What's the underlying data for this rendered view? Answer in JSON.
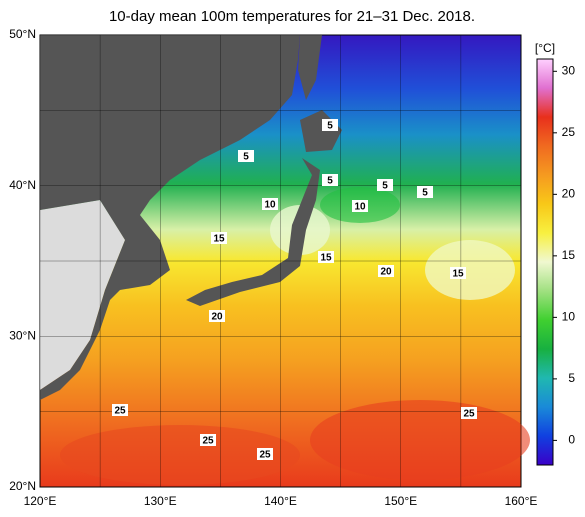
{
  "title": "10-day mean 100m temperatures for 21–31 Dec. 2018.",
  "map": {
    "xlim": [
      120,
      160
    ],
    "ylim": [
      20,
      50
    ],
    "xticks": [
      {
        "value": 120,
        "label": "120°E"
      },
      {
        "value": 130,
        "label": "130°E"
      },
      {
        "value": 140,
        "label": "140°E"
      },
      {
        "value": 150,
        "label": "150°E"
      },
      {
        "value": 160,
        "label": "160°E"
      }
    ],
    "yticks": [
      {
        "value": 20,
        "label": "20°N"
      },
      {
        "value": 30,
        "label": "30°N"
      },
      {
        "value": 40,
        "label": "40°N"
      },
      {
        "value": 50,
        "label": "50°N"
      }
    ],
    "contour_labels": [
      5,
      5,
      5,
      5,
      5,
      10,
      10,
      15,
      15,
      15,
      20,
      20,
      25,
      25,
      25,
      25
    ]
  },
  "colorbar": {
    "label": "[°C]",
    "range": [
      -2,
      31
    ],
    "ticks": [
      0,
      5,
      10,
      15,
      20,
      25,
      30
    ],
    "colors": [
      "#3a00c8",
      "#1040e0",
      "#1a8ad8",
      "#20b8b0",
      "#18b040",
      "#40d030",
      "#a0e080",
      "#f0f8d0",
      "#f8f040",
      "#f8c818",
      "#f59a20",
      "#f06a20",
      "#e8301c",
      "#e070d0",
      "#ffd0ff"
    ]
  }
}
